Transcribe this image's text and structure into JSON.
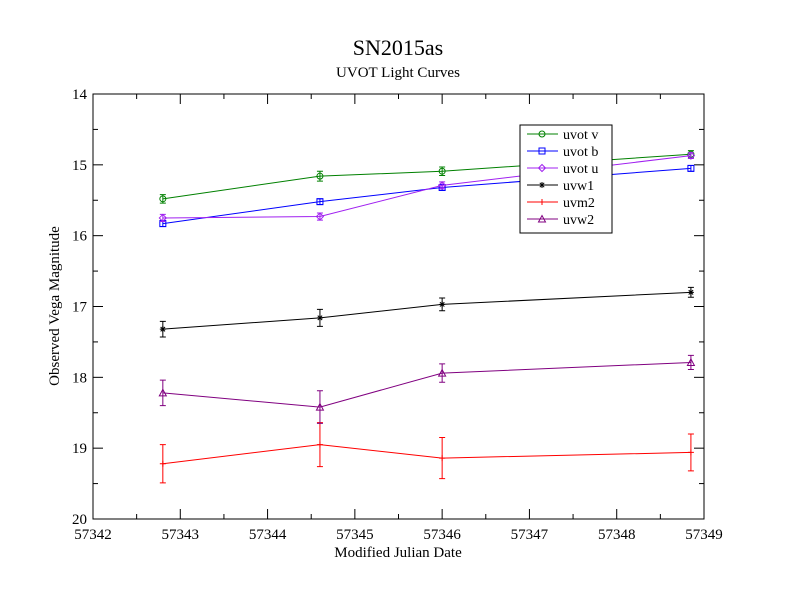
{
  "chart_data": {
    "type": "line",
    "title": "SN2015as",
    "subtitle": "UVOT Light Curves",
    "xlabel": "Modified Julian Date",
    "ylabel": "Observed Vega Magnitude",
    "xlim": [
      57342,
      57349
    ],
    "ylim": [
      14,
      20
    ],
    "y_inverted": true,
    "grid": false,
    "legend_position": "top-right",
    "x_ticks": [
      "57342",
      "57343",
      "57344",
      "57345",
      "57346",
      "57347",
      "57348",
      "57349"
    ],
    "y_ticks": [
      "14",
      "15",
      "16",
      "17",
      "18",
      "19",
      "20"
    ],
    "series": [
      {
        "name": "uvot v",
        "color": "#008000",
        "marker": "circle",
        "x": [
          57342.8,
          57344.6,
          57346.0,
          57348.85
        ],
        "y": [
          15.48,
          15.16,
          15.09,
          14.85
        ],
        "err": [
          0.06,
          0.07,
          0.06,
          0.05
        ]
      },
      {
        "name": "uvot b",
        "color": "#0000ff",
        "marker": "square",
        "x": [
          57342.8,
          57344.6,
          57346.0,
          57348.85
        ],
        "y": [
          15.83,
          15.52,
          15.32,
          15.05
        ],
        "err": [
          0.04,
          0.04,
          0.04,
          0.04
        ]
      },
      {
        "name": "uvot u",
        "color": "#a020f0",
        "marker": "diamond",
        "x": [
          57342.8,
          57344.6,
          57346.0,
          57348.85
        ],
        "y": [
          15.75,
          15.73,
          15.29,
          14.87
        ],
        "err": [
          0.05,
          0.05,
          0.05,
          0.04
        ]
      },
      {
        "name": "uvw1",
        "color": "#000000",
        "marker": "star",
        "x": [
          57342.8,
          57344.6,
          57346.0,
          57348.85
        ],
        "y": [
          17.32,
          17.16,
          16.97,
          16.8
        ],
        "err": [
          0.11,
          0.12,
          0.09,
          0.07
        ]
      },
      {
        "name": "uvm2",
        "color": "#ff0000",
        "marker": "plus",
        "x": [
          57342.8,
          57344.6,
          57346.0,
          57348.85
        ],
        "y": [
          19.22,
          18.95,
          19.14,
          19.06
        ],
        "err": [
          0.27,
          0.31,
          0.29,
          0.26
        ]
      },
      {
        "name": "uvw2",
        "color": "#800080",
        "marker": "triangle",
        "x": [
          57342.8,
          57344.6,
          57346.0,
          57348.85
        ],
        "y": [
          18.22,
          18.42,
          17.94,
          17.79
        ],
        "err": [
          0.18,
          0.23,
          0.13,
          0.1
        ]
      }
    ]
  }
}
